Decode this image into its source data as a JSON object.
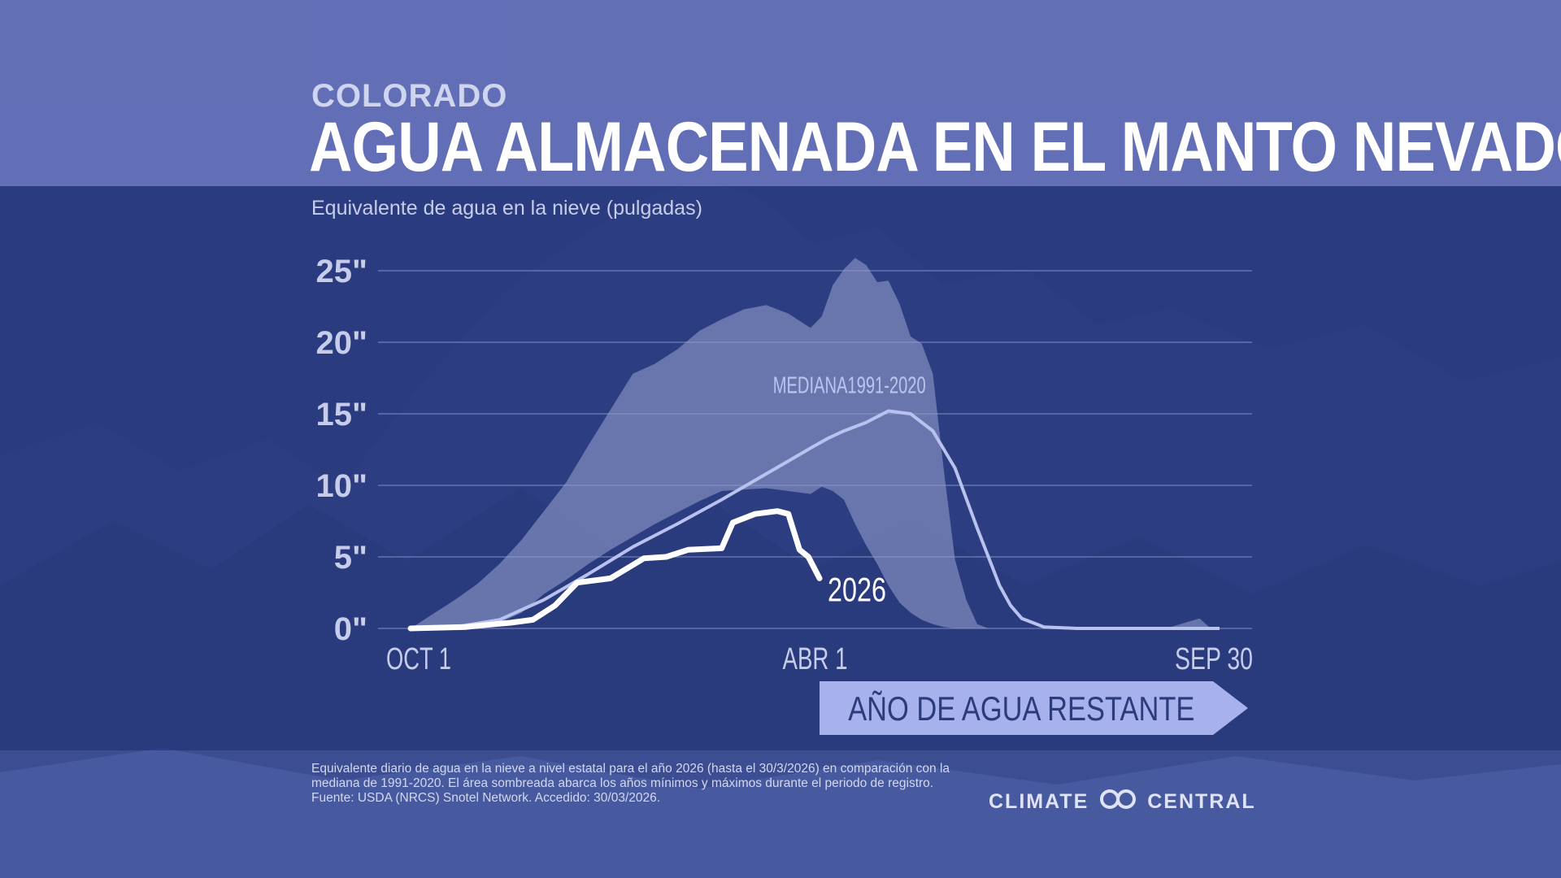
{
  "header": {
    "state": "COLORADO",
    "title": "AGUA ALMACENADA EN EL MANTO NEVADO",
    "ylabel": "Equivalente de agua en la nieve (pulgadas)"
  },
  "chart_data": {
    "type": "area",
    "title": "AGUA ALMACENADA EN EL MANTO NEVADO",
    "ylabel": "Equivalente de agua en la nieve (pulgadas)",
    "ylim": [
      0,
      25
    ],
    "yticks": [
      0,
      5,
      10,
      15,
      20,
      25
    ],
    "ytick_labels": [
      "0\"",
      "5\"",
      "10\"",
      "15\"",
      "20\"",
      "25\""
    ],
    "x_start": "OCT 1",
    "x_end": "SEP 30",
    "xtick_labels": [
      {
        "label": "OCT 1",
        "day": 0
      },
      {
        "label": "ABR 1",
        "day": 182
      },
      {
        "label": "SEP 30",
        "day": 364
      }
    ],
    "grid": true,
    "series": [
      {
        "name": "MEDIANA1991-2020",
        "role": "median",
        "color": "#b9c2ef",
        "day": [
          0,
          20,
          40,
          60,
          80,
          100,
          120,
          140,
          160,
          170,
          180,
          188,
          195,
          205,
          215,
          225,
          235,
          245,
          255,
          265,
          270,
          275,
          285,
          300,
          330,
          364
        ],
        "values": [
          0,
          0.1,
          0.6,
          2.0,
          3.8,
          5.7,
          7.3,
          9.0,
          10.8,
          11.7,
          12.6,
          13.3,
          13.8,
          14.4,
          15.2,
          15.0,
          13.8,
          11.2,
          7.0,
          3.0,
          1.6,
          0.7,
          0.1,
          0,
          0,
          0
        ]
      },
      {
        "name": "2026",
        "role": "current",
        "color": "#ffffff",
        "day": [
          0,
          25,
          38,
          45,
          55,
          65,
          75,
          90,
          105,
          115,
          125,
          140,
          145,
          155,
          165,
          170,
          175,
          179,
          184
        ],
        "values": [
          0,
          0.1,
          0.3,
          0.4,
          0.6,
          1.6,
          3.2,
          3.5,
          4.9,
          5.0,
          5.5,
          5.6,
          7.4,
          8.0,
          8.2,
          8.0,
          5.5,
          5.0,
          3.5
        ]
      }
    ],
    "range": {
      "day": [
        0,
        10,
        20,
        30,
        40,
        50,
        60,
        70,
        80,
        90,
        100,
        110,
        120,
        130,
        140,
        150,
        160,
        170,
        180,
        185,
        190,
        195,
        200,
        205,
        210,
        215,
        220,
        225,
        230,
        235,
        240,
        245,
        250,
        255,
        260,
        265,
        270,
        275,
        280,
        285,
        290,
        300,
        320,
        340,
        355,
        360,
        364
      ],
      "max": [
        0,
        1.0,
        2.0,
        3.1,
        4.5,
        6.2,
        8.2,
        10.2,
        12.8,
        15.3,
        17.8,
        18.5,
        19.5,
        20.8,
        21.6,
        22.3,
        22.6,
        22.0,
        21.0,
        21.8,
        24.0,
        25.1,
        25.9,
        25.4,
        24.2,
        24.3,
        22.7,
        20.4,
        19.9,
        17.8,
        11.0,
        4.8,
        2.0,
        0.3,
        0,
        0,
        0,
        0,
        0,
        0,
        0,
        0,
        0,
        0,
        0.7,
        0,
        0
      ],
      "min": [
        0,
        0,
        0,
        0.1,
        0.4,
        1.1,
        2.4,
        3.4,
        4.5,
        5.5,
        6.4,
        7.3,
        8.1,
        8.9,
        9.6,
        9.7,
        9.8,
        9.6,
        9.4,
        9.9,
        9.6,
        9.0,
        7.3,
        5.8,
        4.5,
        3.0,
        1.8,
        1.1,
        0.6,
        0.3,
        0.1,
        0,
        0,
        0,
        0,
        0,
        0,
        0,
        0,
        0,
        0,
        0,
        0,
        0,
        0,
        0,
        0
      ]
    },
    "annotations": [
      "MEDIANA1991-2020",
      "2026"
    ],
    "arrow_label": "AÑO DE AGUA RESTANTE"
  },
  "footnote": "Equivalente diario de agua en la nieve a nivel estatal para el año 2026 (hasta el 30/3/2026) en comparación con la mediana de 1991-2020. El área sombreada abarca los años mínimos y máximos durante el periodo de registro. Fuente: USDA (NRCS) Snotel Network. Accedido: 30/03/2026.",
  "brand": {
    "left": "CLIMATE",
    "right": "CENTRAL"
  },
  "colors": {
    "background": "#2f3f80",
    "range_fill": "#8f99c9",
    "median": "#b9c2ef",
    "current": "#ffffff",
    "arrow": "#a7b2ec"
  }
}
